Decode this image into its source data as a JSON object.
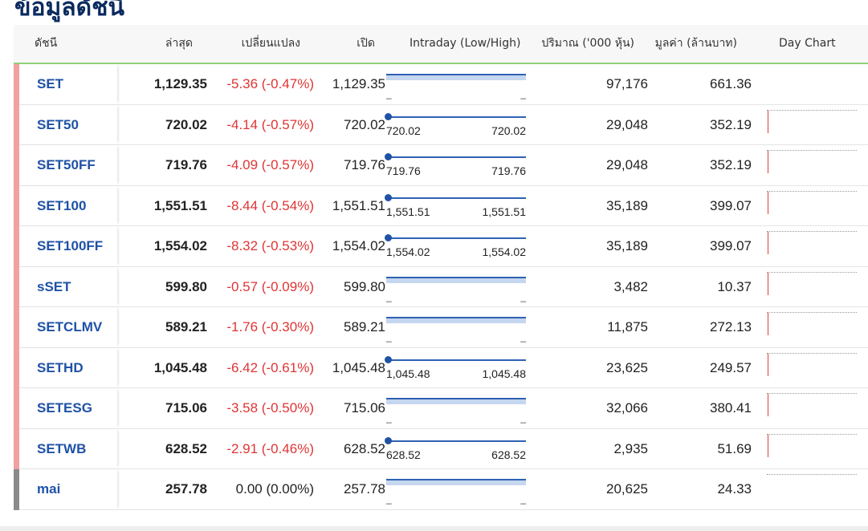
{
  "page": {
    "title": "ข้อมูลดัชนี"
  },
  "table": {
    "headers": {
      "index": "ดัชนี",
      "last": "ล่าสุด",
      "change": "เปลี่ยนแปลง",
      "open": "เปิด",
      "intraday": "Intraday (Low/High)",
      "volume": "ปริมาณ ('000 หุ้น)",
      "value": "มูลค่า (ล้านบาท)",
      "daychart": "Day Chart"
    },
    "rows": [
      {
        "name": "SET",
        "last": "1,129.35",
        "change": "-5.36 (-0.47%)",
        "direction": "down",
        "open": "1,129.35",
        "intraday_type": "range",
        "low": "",
        "high": "",
        "low_dash": "_",
        "high_dash": "_",
        "volume": "97,176",
        "value": "661.36",
        "daychart": false,
        "accent": "#f2a0a0"
      },
      {
        "name": "SET50",
        "last": "720.02",
        "change": "-4.14 (-0.57%)",
        "direction": "down",
        "open": "720.02",
        "intraday_type": "point",
        "low": "720.02",
        "high": "720.02",
        "volume": "29,048",
        "value": "352.19",
        "daychart": true,
        "accent": "#f2a0a0"
      },
      {
        "name": "SET50FF",
        "last": "719.76",
        "change": "-4.09 (-0.57%)",
        "direction": "down",
        "open": "719.76",
        "intraday_type": "point",
        "low": "719.76",
        "high": "719.76",
        "volume": "29,048",
        "value": "352.19",
        "daychart": true,
        "accent": "#f2a0a0"
      },
      {
        "name": "SET100",
        "last": "1,551.51",
        "change": "-8.44 (-0.54%)",
        "direction": "down",
        "open": "1,551.51",
        "intraday_type": "point",
        "low": "1,551.51",
        "high": "1,551.51",
        "volume": "35,189",
        "value": "399.07",
        "daychart": true,
        "accent": "#f2a0a0"
      },
      {
        "name": "SET100FF",
        "last": "1,554.02",
        "change": "-8.32 (-0.53%)",
        "direction": "down",
        "open": "1,554.02",
        "intraday_type": "point",
        "low": "1,554.02",
        "high": "1,554.02",
        "volume": "35,189",
        "value": "399.07",
        "daychart": true,
        "accent": "#f2a0a0"
      },
      {
        "name": "sSET",
        "last": "599.80",
        "change": "-0.57 (-0.09%)",
        "direction": "down",
        "open": "599.80",
        "intraday_type": "range",
        "low": "",
        "high": "",
        "low_dash": "_",
        "high_dash": "_",
        "volume": "3,482",
        "value": "10.37",
        "daychart": true,
        "accent": "#f2a0a0"
      },
      {
        "name": "SETCLMV",
        "last": "589.21",
        "change": "-1.76 (-0.30%)",
        "direction": "down",
        "open": "589.21",
        "intraday_type": "range",
        "low": "",
        "high": "",
        "low_dash": "_",
        "high_dash": "_",
        "volume": "11,875",
        "value": "272.13",
        "daychart": true,
        "accent": "#f2a0a0"
      },
      {
        "name": "SETHD",
        "last": "1,045.48",
        "change": "-6.42 (-0.61%)",
        "direction": "down",
        "open": "1,045.48",
        "intraday_type": "point",
        "low": "1,045.48",
        "high": "1,045.48",
        "volume": "23,625",
        "value": "249.57",
        "daychart": true,
        "accent": "#f2a0a0"
      },
      {
        "name": "SETESG",
        "last": "715.06",
        "change": "-3.58 (-0.50%)",
        "direction": "down",
        "open": "715.06",
        "intraday_type": "range",
        "low": "",
        "high": "",
        "low_dash": "_",
        "high_dash": "_",
        "volume": "32,066",
        "value": "380.41",
        "daychart": true,
        "accent": "#f2a0a0"
      },
      {
        "name": "SETWB",
        "last": "628.52",
        "change": "-2.91 (-0.46%)",
        "direction": "down",
        "open": "628.52",
        "intraday_type": "point",
        "low": "628.52",
        "high": "628.52",
        "volume": "2,935",
        "value": "51.69",
        "daychart": true,
        "accent": "#f2a0a0"
      },
      {
        "name": "mai",
        "last": "257.78",
        "change": "0.00 (0.00%)",
        "direction": "flat",
        "open": "257.78",
        "intraday_type": "range",
        "low": "",
        "high": "",
        "low_dash": "_",
        "high_dash": "_",
        "volume": "20,625",
        "value": "24.33",
        "daychart": false,
        "daychart_line_only": true,
        "accent": "#8a8a8a"
      }
    ]
  }
}
